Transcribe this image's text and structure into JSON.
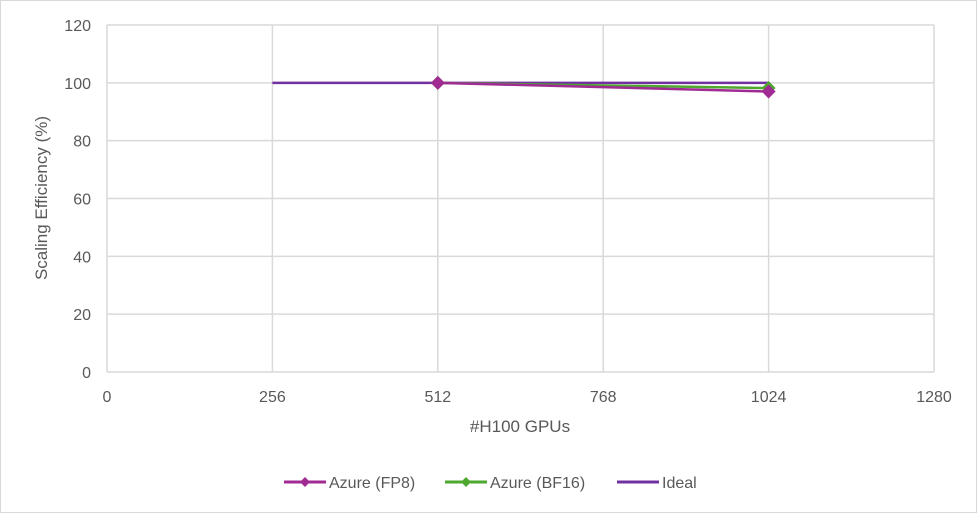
{
  "chart_data": {
    "type": "scatter",
    "title": "",
    "xlabel": "#H100 GPUs",
    "ylabel": "Scaling Efficiency (%)",
    "xlim": [
      0,
      1280
    ],
    "ylim": [
      0,
      120
    ],
    "xticks": [
      0,
      256,
      512,
      768,
      1024,
      1280
    ],
    "yticks": [
      0,
      20,
      40,
      60,
      80,
      100,
      120
    ],
    "grid": true,
    "legend_placement": "bottom",
    "series": [
      {
        "name": "Azure (FP8)",
        "color": "#a02b93",
        "marker": "diamond",
        "x": [
          512,
          1024
        ],
        "y": [
          100,
          97
        ]
      },
      {
        "name": "Azure (BF16)",
        "color": "#4ea72e",
        "marker": "diamond",
        "x": [
          512,
          1024
        ],
        "y": [
          100,
          98.2
        ]
      },
      {
        "name": "Ideal",
        "color": "#7030a0",
        "marker": "none",
        "x": [
          256,
          1024
        ],
        "y": [
          100,
          100
        ]
      }
    ]
  }
}
